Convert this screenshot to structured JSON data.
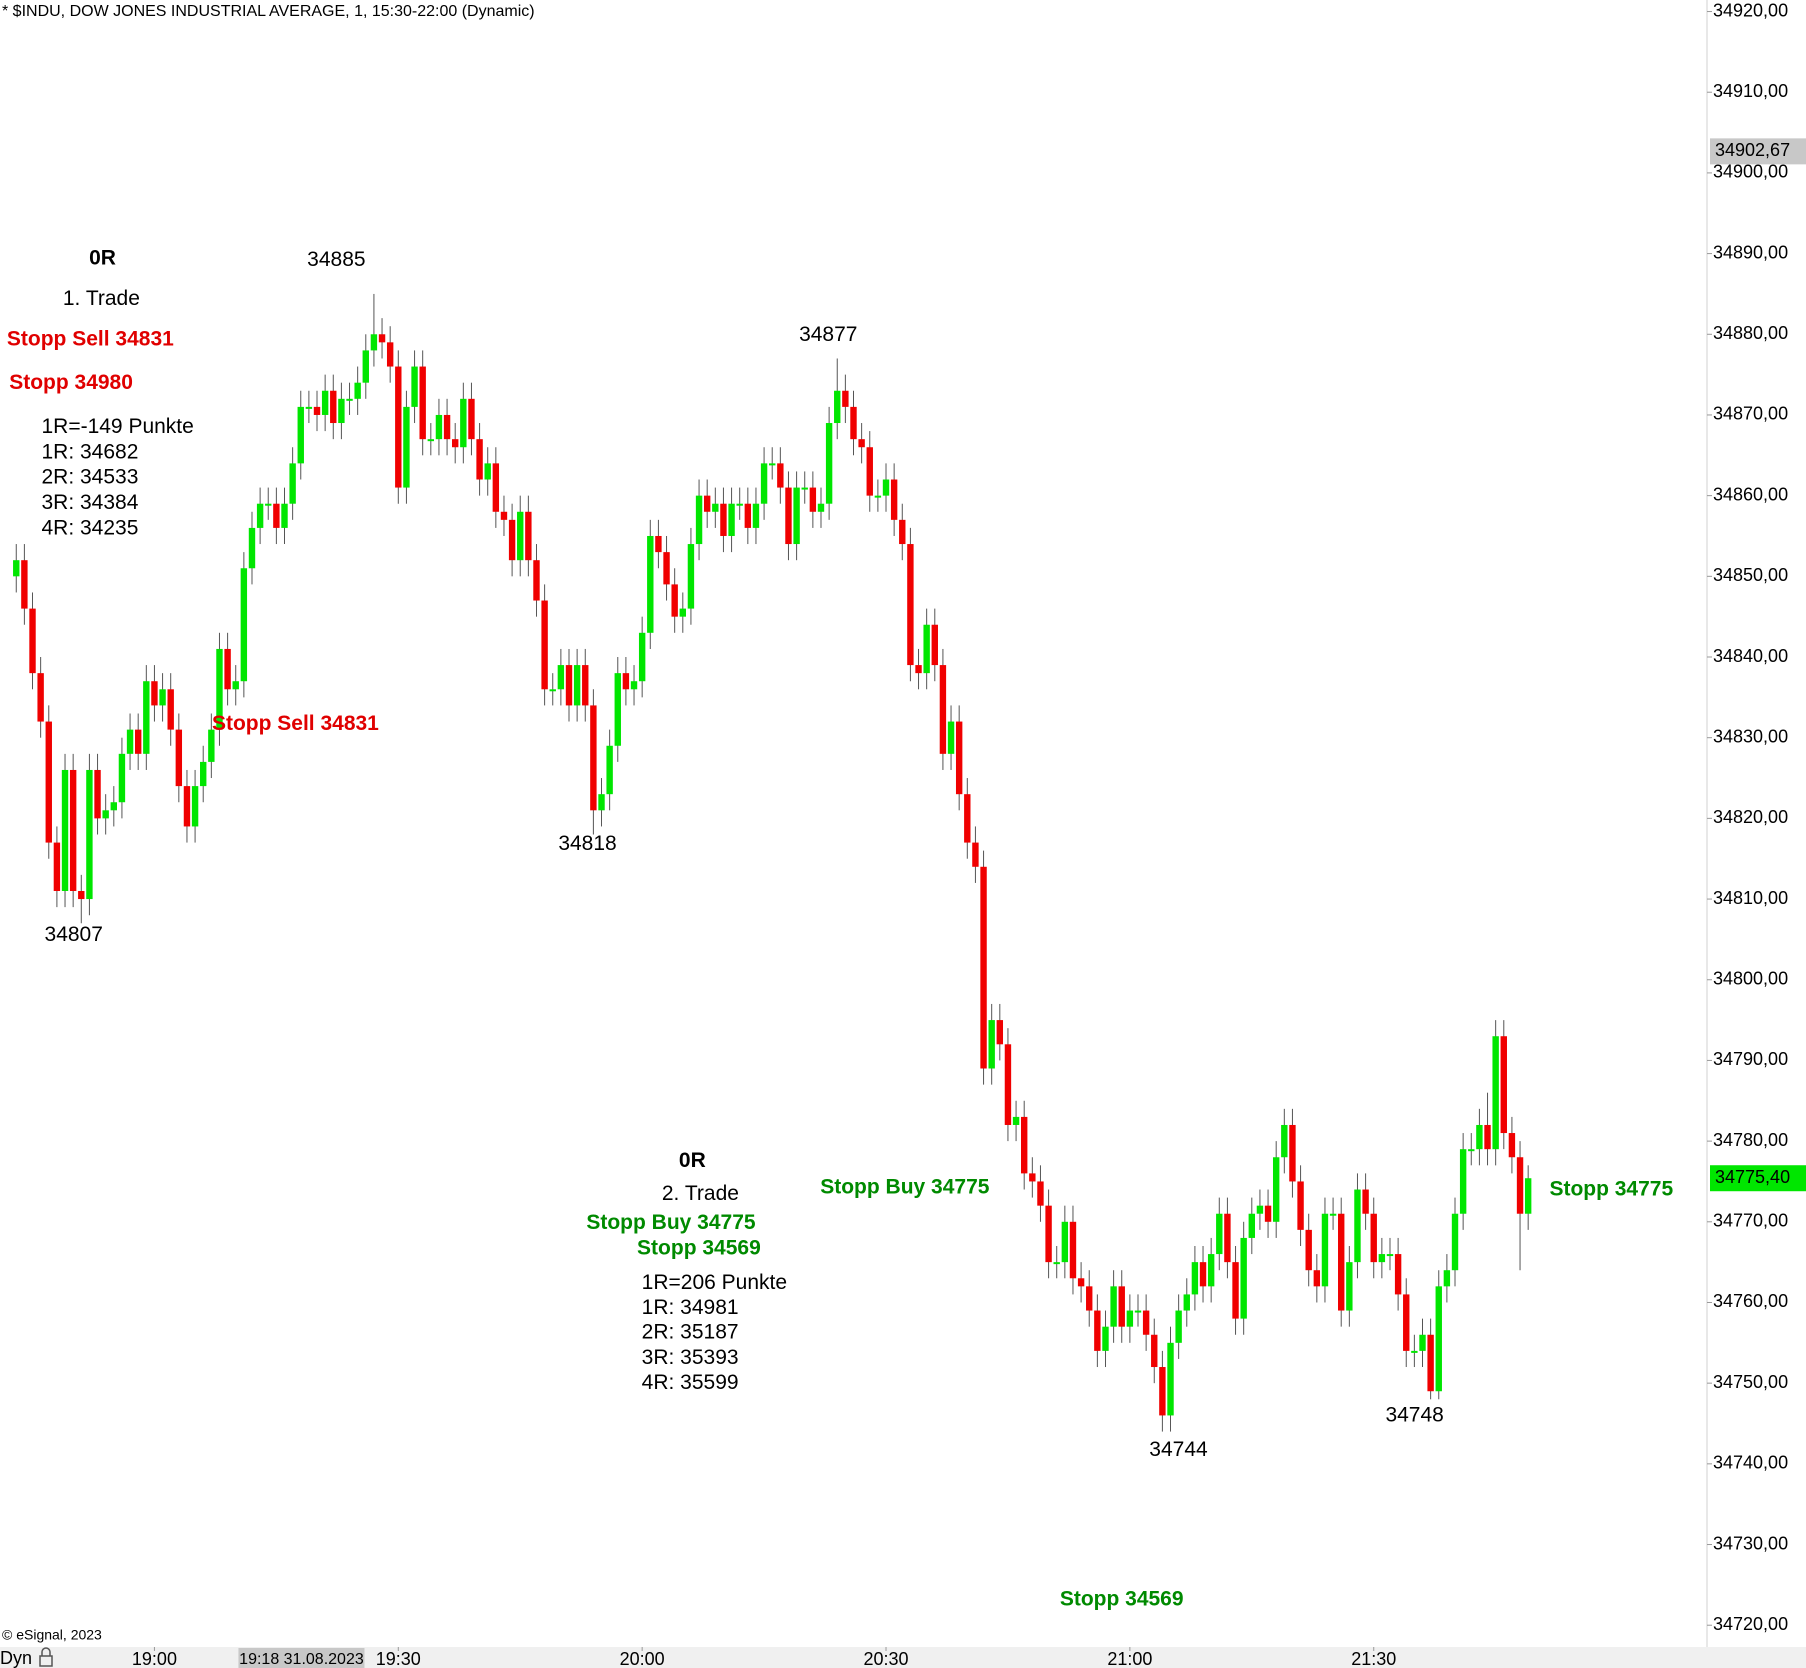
{
  "chart_data": {
    "type": "candlestick",
    "title": "* $INDU, DOW JONES INDUSTRIAL AVERAGE, 1, 15:30-22:00 (Dynamic)",
    "copyright": "© eSignal, 2023",
    "mode": "Dyn",
    "cursor_time": "19:18 31.08.2023",
    "up_color": "#00e600",
    "down_color": "#f00000",
    "ylim": [
      34717.3,
      34921.43
    ],
    "xlim": [
      "18:41",
      "22:11"
    ],
    "yticks": [
      {
        "value": 34720,
        "label": "34720,00"
      },
      {
        "value": 34730,
        "label": "34730,00"
      },
      {
        "value": 34740,
        "label": "34740,00"
      },
      {
        "value": 34750,
        "label": "34750,00"
      },
      {
        "value": 34760,
        "label": "34760,00"
      },
      {
        "value": 34770,
        "label": "34770,00"
      },
      {
        "value": 34780,
        "label": "34780,00"
      },
      {
        "value": 34790,
        "label": "34790,00"
      },
      {
        "value": 34800,
        "label": "34800,00"
      },
      {
        "value": 34810,
        "label": "34810,00"
      },
      {
        "value": 34820,
        "label": "34820,00"
      },
      {
        "value": 34830,
        "label": "34830,00"
      },
      {
        "value": 34840,
        "label": "34840,00"
      },
      {
        "value": 34850,
        "label": "34850,00"
      },
      {
        "value": 34860,
        "label": "34860,00"
      },
      {
        "value": 34870,
        "label": "34870,00"
      },
      {
        "value": 34880,
        "label": "34880,00"
      },
      {
        "value": 34890,
        "label": "34890,00"
      },
      {
        "value": 34900,
        "label": "34900,00"
      },
      {
        "value": 34910,
        "label": "34910,00"
      },
      {
        "value": 34920,
        "label": "34920,00"
      }
    ],
    "xticks": [
      "19:00",
      "19:30",
      "20:00",
      "20:30",
      "21:00",
      "21:30"
    ],
    "marker_price": {
      "value": 34902.67,
      "label": "34902,67",
      "color": "#c8c8c8"
    },
    "last_price": {
      "value": 34775.4,
      "label": "34775,40",
      "color": "#00e600"
    },
    "x": [
      "18:43",
      "18:44",
      "18:45",
      "18:46",
      "18:47",
      "18:48",
      "18:49",
      "18:50",
      "18:51",
      "18:52",
      "18:53",
      "18:54",
      "18:55",
      "18:56",
      "18:57",
      "18:58",
      "18:59",
      "19:00",
      "19:01",
      "19:02",
      "19:03",
      "19:04",
      "19:05",
      "19:06",
      "19:07",
      "19:08",
      "19:09",
      "19:10",
      "19:11",
      "19:12",
      "19:13",
      "19:14",
      "19:15",
      "19:16",
      "19:17",
      "19:18",
      "19:19",
      "19:20",
      "19:21",
      "19:22",
      "19:23",
      "19:24",
      "19:25",
      "19:26",
      "19:27",
      "19:28",
      "19:29",
      "19:30",
      "19:31",
      "19:32",
      "19:33",
      "19:34",
      "19:35",
      "19:36",
      "19:37",
      "19:38",
      "19:39",
      "19:40",
      "19:41",
      "19:42",
      "19:43",
      "19:44",
      "19:45",
      "19:46",
      "19:47",
      "19:48",
      "19:49",
      "19:50",
      "19:51",
      "19:52",
      "19:53",
      "19:54",
      "19:55",
      "19:56",
      "19:57",
      "19:58",
      "19:59",
      "20:00",
      "20:01",
      "20:02",
      "20:03",
      "20:04",
      "20:05",
      "20:06",
      "20:07",
      "20:08",
      "20:09",
      "20:10",
      "20:11",
      "20:12",
      "20:13",
      "20:14",
      "20:15",
      "20:16",
      "20:17",
      "20:18",
      "20:19",
      "20:20",
      "20:21",
      "20:22",
      "20:23",
      "20:24",
      "20:25",
      "20:26",
      "20:27",
      "20:28",
      "20:29",
      "20:30",
      "20:31",
      "20:32",
      "20:33",
      "20:34",
      "20:35",
      "20:36",
      "20:37",
      "20:38",
      "20:39",
      "20:40",
      "20:41",
      "20:42",
      "20:43",
      "20:44",
      "20:45",
      "20:46",
      "20:47",
      "20:48",
      "20:49",
      "20:50",
      "20:51",
      "20:52",
      "20:53",
      "20:54",
      "20:55",
      "20:56",
      "20:57",
      "20:58",
      "20:59",
      "21:00",
      "21:01",
      "21:02",
      "21:03",
      "21:04",
      "21:05",
      "21:06",
      "21:07",
      "21:08",
      "21:09",
      "21:10",
      "21:11",
      "21:12",
      "21:13",
      "21:14",
      "21:15",
      "21:16",
      "21:17",
      "21:18",
      "21:19",
      "21:20",
      "21:21",
      "21:22",
      "21:23",
      "21:24",
      "21:25",
      "21:26",
      "21:27",
      "21:28",
      "21:29",
      "21:30",
      "21:31",
      "21:32",
      "21:33",
      "21:34",
      "21:35",
      "21:36",
      "21:37",
      "21:38",
      "21:39",
      "21:40",
      "21:41",
      "21:42",
      "21:43",
      "21:44",
      "21:45",
      "21:46",
      "21:47",
      "21:48",
      "21:49"
    ],
    "open": [
      34850,
      34852,
      34846,
      34838,
      34832,
      34817,
      34811,
      34826,
      34811,
      34810,
      34826,
      34820,
      34821,
      34822,
      34828,
      34831,
      34828,
      34837,
      34834,
      34836,
      34831,
      34824,
      34819,
      34824,
      34827,
      34831,
      34841,
      34836,
      34837,
      34851,
      34856,
      34859,
      34859,
      34856,
      34859,
      34864,
      34871,
      34871,
      34870,
      34873,
      34869,
      34872,
      34872,
      34874,
      34878,
      34880,
      34879,
      34876,
      34861,
      34871,
      34876,
      34867,
      34867,
      34870,
      34867,
      34866,
      34872,
      34867,
      34862,
      34864,
      34858,
      34857,
      34852,
      34858,
      34852,
      34847,
      34836,
      34836,
      34839,
      34834,
      34839,
      34834,
      34821,
      34823,
      34829,
      34838,
      34836,
      34837,
      34843,
      34855,
      34853,
      34849,
      34845,
      34846,
      34854,
      34860,
      34858,
      34859,
      34855,
      34859,
      34859,
      34856,
      34859,
      34864,
      34864,
      34861,
      34854,
      34861,
      34861,
      34858,
      34859,
      34869,
      34873,
      34871,
      34867,
      34866,
      34860,
      34860,
      34862,
      34857,
      34854,
      34839,
      34838,
      34844,
      34839,
      34828,
      34832,
      34823,
      34817,
      34814,
      34789,
      34795,
      34792,
      34782,
      34783,
      34776,
      34775,
      34772,
      34765,
      34765,
      34770,
      34763,
      34762,
      34759,
      34754,
      34757,
      34762,
      34757,
      34759,
      34759,
      34756,
      34752,
      34746,
      34755,
      34759,
      34761,
      34765,
      34762,
      34766,
      34771,
      34765,
      34758,
      34768,
      34771,
      34772,
      34770,
      34778,
      34782,
      34775,
      34769,
      34764,
      34762,
      34771,
      34771,
      34759,
      34765,
      34774,
      34771,
      34765,
      34766,
      34766,
      34761,
      34754,
      34754,
      34756,
      34749,
      34762,
      34764,
      34771,
      34779,
      34779,
      34782,
      34779,
      34793,
      34781,
      34778,
      34771
    ],
    "high": [
      34854,
      34854,
      34848,
      34840,
      34834,
      34819,
      34828,
      34828,
      34813,
      34828,
      34828,
      34823,
      34824,
      34830,
      34833,
      34833,
      34839,
      34839,
      34838,
      34838,
      34833,
      34826,
      34826,
      34829,
      34833,
      34843,
      34843,
      34839,
      34853,
      34858,
      34861,
      34861,
      34861,
      34861,
      34866,
      34873,
      34873,
      34873,
      34875,
      34875,
      34874,
      34874,
      34876,
      34880,
      34885,
      34882,
      34881,
      34878,
      34873,
      34878,
      34878,
      34869,
      34872,
      34872,
      34869,
      34874,
      34874,
      34869,
      34866,
      34866,
      34860,
      34859,
      34860,
      34860,
      34854,
      34849,
      34838,
      34841,
      34841,
      34841,
      34841,
      34836,
      34825,
      34831,
      34840,
      34840,
      34839,
      34845,
      34857,
      34857,
      34855,
      34851,
      34848,
      34856,
      34862,
      34862,
      34861,
      34861,
      34861,
      34861,
      34861,
      34861,
      34866,
      34866,
      34866,
      34863,
      34863,
      34863,
      34863,
      34861,
      34871,
      34877,
      34875,
      34873,
      34869,
      34868,
      34862,
      34864,
      34864,
      34859,
      34856,
      34841,
      34846,
      34846,
      34841,
      34834,
      34834,
      34825,
      34819,
      34816,
      34797,
      34797,
      34794,
      34785,
      34785,
      34778,
      34777,
      34774,
      34767,
      34772,
      34772,
      34765,
      34764,
      34761,
      34759,
      34764,
      34764,
      34761,
      34761,
      34761,
      34758,
      34754,
      34757,
      34761,
      34763,
      34767,
      34767,
      34768,
      34773,
      34773,
      34767,
      34770,
      34773,
      34774,
      34774,
      34780,
      34784,
      34784,
      34777,
      34771,
      34766,
      34773,
      34773,
      34773,
      34767,
      34776,
      34776,
      34773,
      34768,
      34768,
      34768,
      34763,
      34756,
      34758,
      34758,
      34764,
      34766,
      34773,
      34781,
      34781,
      34784,
      34786,
      34795,
      34795,
      34783,
      34780,
      34777
    ],
    "low": [
      34848,
      34844,
      34836,
      34830,
      34815,
      34809,
      34809,
      34809,
      34807,
      34808,
      34818,
      34818,
      34819,
      34820,
      34826,
      34826,
      34826,
      34832,
      34832,
      34829,
      34822,
      34817,
      34817,
      34822,
      34825,
      34829,
      34834,
      34834,
      34835,
      34849,
      34854,
      34857,
      34854,
      34854,
      34857,
      34862,
      34869,
      34868,
      34868,
      34867,
      34867,
      34870,
      34870,
      34872,
      34876,
      34877,
      34874,
      34859,
      34859,
      34869,
      34865,
      34865,
      34865,
      34865,
      34864,
      34864,
      34865,
      34860,
      34860,
      34856,
      34855,
      34850,
      34850,
      34850,
      34845,
      34834,
      34834,
      34834,
      34832,
      34832,
      34832,
      34818,
      34819,
      34821,
      34827,
      34834,
      34834,
      34835,
      34841,
      34851,
      34847,
      34843,
      34843,
      34844,
      34852,
      34856,
      34856,
      34853,
      34853,
      34857,
      34854,
      34854,
      34857,
      34862,
      34859,
      34852,
      34852,
      34859,
      34856,
      34856,
      34857,
      34867,
      34869,
      34865,
      34864,
      34858,
      34858,
      34858,
      34855,
      34852,
      34837,
      34836,
      34836,
      34837,
      34826,
      34826,
      34821,
      34815,
      34812,
      34787,
      34787,
      34790,
      34780,
      34780,
      34774,
      34773,
      34770,
      34763,
      34763,
      34763,
      34761,
      34760,
      34757,
      34752,
      34752,
      34755,
      34755,
      34755,
      34757,
      34754,
      34750,
      34744,
      34744,
      34753,
      34757,
      34759,
      34760,
      34760,
      34764,
      34763,
      34756,
      34756,
      34766,
      34769,
      34768,
      34768,
      34776,
      34773,
      34767,
      34762,
      34760,
      34760,
      34769,
      34757,
      34757,
      34763,
      34769,
      34763,
      34763,
      34764,
      34759,
      34752,
      34752,
      34752,
      34748,
      34748,
      34760,
      34762,
      34769,
      34777,
      34777,
      34777,
      34777,
      34779,
      34776,
      34764,
      34769
    ],
    "close": [
      34852,
      34846,
      34838,
      34832,
      34817,
      34811,
      34826,
      34811,
      34810,
      34826,
      34820,
      34821,
      34822,
      34828,
      34831,
      34828,
      34837,
      34834,
      34836,
      34831,
      34824,
      34819,
      34824,
      34827,
      34831,
      34841,
      34836,
      34837,
      34851,
      34856,
      34859,
      34859,
      34856,
      34859,
      34864,
      34871,
      34871,
      34870,
      34873,
      34869,
      34872,
      34872,
      34874,
      34878,
      34880,
      34879,
      34876,
      34861,
      34871,
      34876,
      34867,
      34867,
      34870,
      34867,
      34866,
      34872,
      34867,
      34862,
      34864,
      34858,
      34857,
      34852,
      34858,
      34852,
      34847,
      34836,
      34836,
      34839,
      34834,
      34839,
      34834,
      34821,
      34823,
      34829,
      34838,
      34836,
      34837,
      34843,
      34855,
      34853,
      34849,
      34845,
      34846,
      34854,
      34860,
      34858,
      34859,
      34855,
      34859,
      34859,
      34856,
      34859,
      34864,
      34864,
      34861,
      34854,
      34861,
      34861,
      34858,
      34859,
      34869,
      34873,
      34871,
      34867,
      34866,
      34860,
      34860,
      34862,
      34857,
      34854,
      34839,
      34838,
      34844,
      34839,
      34828,
      34832,
      34823,
      34817,
      34814,
      34789,
      34795,
      34792,
      34782,
      34783,
      34776,
      34775,
      34772,
      34765,
      34765,
      34770,
      34763,
      34762,
      34759,
      34754,
      34757,
      34762,
      34757,
      34759,
      34759,
      34756,
      34752,
      34746,
      34755,
      34759,
      34761,
      34765,
      34762,
      34766,
      34771,
      34765,
      34758,
      34768,
      34771,
      34772,
      34770,
      34778,
      34782,
      34775,
      34769,
      34764,
      34762,
      34771,
      34771,
      34759,
      34765,
      34774,
      34771,
      34765,
      34766,
      34766,
      34761,
      34754,
      34754,
      34756,
      34749,
      34762,
      34764,
      34771,
      34779,
      34779,
      34782,
      34779,
      34793,
      34781,
      34778,
      34771,
      34775.4
    ],
    "annotations": [
      {
        "text": "0R",
        "color": "#000000"
      },
      {
        "text": "1. Trade",
        "color": "#000000"
      },
      {
        "text": "Stopp Sell 34831",
        "color": "#e00000"
      },
      {
        "text": "Stopp 34980",
        "color": "#e00000"
      },
      {
        "text": "1R=-149 Punkte",
        "color": "#000000"
      },
      {
        "text": "1R: 34682",
        "color": "#000000"
      },
      {
        "text": "2R: 34533",
        "color": "#000000"
      },
      {
        "text": "3R: 34384",
        "color": "#000000"
      },
      {
        "text": "4R: 34235",
        "color": "#000000"
      },
      {
        "text": "34885",
        "color": "#000000"
      },
      {
        "text": "34877",
        "color": "#000000"
      },
      {
        "text": "34818",
        "color": "#000000"
      },
      {
        "text": "34807",
        "color": "#000000"
      },
      {
        "text": "34744",
        "color": "#000000"
      },
      {
        "text": "34748",
        "color": "#000000"
      },
      {
        "text": "Stopp Sell 34831",
        "color": "#e00000"
      },
      {
        "text": "0R",
        "color": "#000000"
      },
      {
        "text": "2. Trade",
        "color": "#000000"
      },
      {
        "text": "Stopp Buy 34775",
        "color": "#008a00"
      },
      {
        "text": "Stopp 34569",
        "color": "#008a00"
      },
      {
        "text": "1R=206 Punkte",
        "color": "#000000"
      },
      {
        "text": "1R: 34981",
        "color": "#000000"
      },
      {
        "text": "2R: 35187",
        "color": "#000000"
      },
      {
        "text": "3R: 35393",
        "color": "#000000"
      },
      {
        "text": "4R: 35599",
        "color": "#000000"
      },
      {
        "text": "Stopp Buy 34775",
        "color": "#008a00"
      },
      {
        "text": "Stopp 34775",
        "color": "#008a00"
      },
      {
        "text": "Stopp 34569",
        "color": "#008a00"
      }
    ]
  }
}
